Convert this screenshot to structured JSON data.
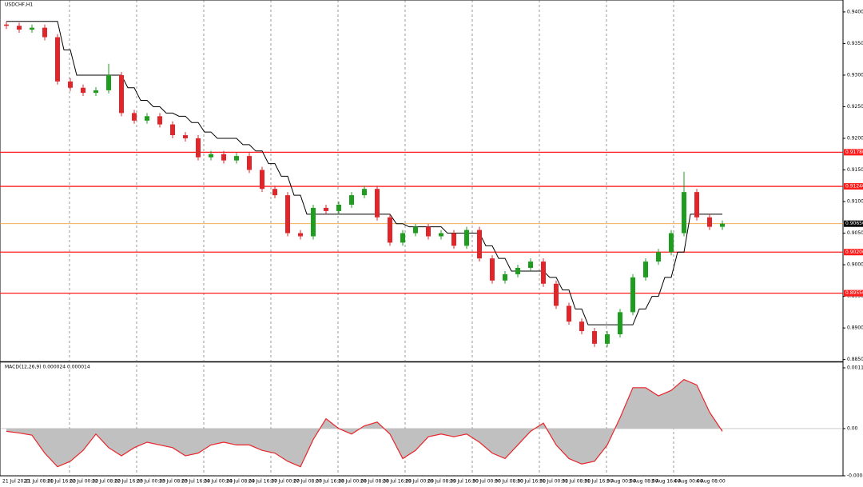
{
  "chart_data": [
    {
      "type": "candlestick",
      "title": "USDCHF,H1",
      "up_color": "#1f9d1f",
      "down_color": "#e0262b",
      "line_color": "#000000",
      "level_color": "#ff1a1a",
      "price_color": "#f0a040",
      "open": [
        0.938,
        0.9378,
        0.9372,
        0.9375,
        0.936,
        0.929,
        0.928,
        0.9272,
        0.9276,
        0.93,
        0.924,
        0.9228,
        0.9235,
        0.9222,
        0.9205,
        0.92,
        0.917,
        0.9175,
        0.9165,
        0.9172,
        0.915,
        0.912,
        0.911,
        0.905,
        0.9045,
        0.909,
        0.9085,
        0.9095,
        0.911,
        0.912,
        0.9075,
        0.9035,
        0.905,
        0.906,
        0.9045,
        0.905,
        0.903,
        0.9055,
        0.901,
        0.8975,
        0.8985,
        0.8995,
        0.9005,
        0.897,
        0.8935,
        0.891,
        0.8895,
        0.8875,
        0.889,
        0.8925,
        0.898,
        0.9005,
        0.902,
        0.905,
        0.9115,
        0.9075,
        0.906
      ],
      "high": [
        0.9385,
        0.9383,
        0.938,
        0.938,
        0.9365,
        0.9295,
        0.9285,
        0.9281,
        0.9318,
        0.9305,
        0.9245,
        0.924,
        0.924,
        0.9227,
        0.921,
        0.9205,
        0.918,
        0.918,
        0.9177,
        0.9177,
        0.9155,
        0.9125,
        0.9115,
        0.9055,
        0.9095,
        0.9095,
        0.91,
        0.9115,
        0.9125,
        0.9125,
        0.908,
        0.9055,
        0.9065,
        0.9065,
        0.9055,
        0.9055,
        0.906,
        0.906,
        0.9015,
        0.899,
        0.9,
        0.901,
        0.901,
        0.8975,
        0.894,
        0.8915,
        0.89,
        0.8895,
        0.893,
        0.8985,
        0.901,
        0.9025,
        0.9055,
        0.9147,
        0.912,
        0.908,
        0.907
      ],
      "low": [
        0.9373,
        0.9367,
        0.9367,
        0.9355,
        0.9285,
        0.9275,
        0.9267,
        0.9267,
        0.9271,
        0.9235,
        0.9223,
        0.9223,
        0.9217,
        0.92,
        0.9195,
        0.9165,
        0.9165,
        0.916,
        0.916,
        0.9145,
        0.9115,
        0.9105,
        0.9045,
        0.904,
        0.904,
        0.908,
        0.908,
        0.909,
        0.9105,
        0.907,
        0.903,
        0.903,
        0.9045,
        0.904,
        0.904,
        0.9025,
        0.9025,
        0.9005,
        0.897,
        0.897,
        0.898,
        0.899,
        0.8965,
        0.893,
        0.8905,
        0.889,
        0.887,
        0.887,
        0.8885,
        0.892,
        0.8975,
        0.9,
        0.9015,
        0.9045,
        0.907,
        0.9055,
        0.9055
      ],
      "close": [
        0.9378,
        0.9372,
        0.9375,
        0.936,
        0.929,
        0.928,
        0.9272,
        0.9276,
        0.93,
        0.924,
        0.9228,
        0.9235,
        0.9222,
        0.9205,
        0.92,
        0.917,
        0.9175,
        0.9165,
        0.9172,
        0.915,
        0.912,
        0.911,
        0.905,
        0.9045,
        0.909,
        0.9085,
        0.9095,
        0.911,
        0.912,
        0.9075,
        0.9035,
        0.905,
        0.906,
        0.9045,
        0.905,
        0.903,
        0.9055,
        0.901,
        0.8975,
        0.8985,
        0.8995,
        0.9005,
        0.897,
        0.8935,
        0.891,
        0.8895,
        0.8875,
        0.889,
        0.8925,
        0.898,
        0.9005,
        0.902,
        0.905,
        0.9115,
        0.9075,
        0.906,
        0.9065
      ],
      "trail": [
        0.9385,
        0.9385,
        0.9385,
        0.9385,
        0.9385,
        0.934,
        0.93,
        0.93,
        0.93,
        0.93,
        0.928,
        0.926,
        0.925,
        0.924,
        0.9235,
        0.9225,
        0.921,
        0.92,
        0.92,
        0.919,
        0.918,
        0.916,
        0.914,
        0.911,
        0.908,
        0.908,
        0.908,
        0.908,
        0.908,
        0.908,
        0.908,
        0.9065,
        0.906,
        0.906,
        0.906,
        0.905,
        0.905,
        0.905,
        0.903,
        0.901,
        0.899,
        0.899,
        0.899,
        0.898,
        0.896,
        0.893,
        0.8905,
        0.8905,
        0.8905,
        0.8905,
        0.893,
        0.895,
        0.898,
        0.902,
        0.908,
        0.908,
        0.908
      ],
      "ylim": [
        0.8847,
        0.941
      ],
      "yticks": [
        {
          "value": 0.885,
          "label": "0.88500"
        },
        {
          "value": 0.89,
          "label": "0.89000"
        },
        {
          "value": 0.895,
          "label": "0.89500"
        },
        {
          "value": 0.9,
          "label": "0.90000"
        },
        {
          "value": 0.905,
          "label": "0.90500"
        },
        {
          "value": 0.91,
          "label": "0.91000"
        },
        {
          "value": 0.915,
          "label": "0.91500"
        },
        {
          "value": 0.92,
          "label": "0.92000"
        },
        {
          "value": 0.925,
          "label": "0.92500"
        },
        {
          "value": 0.93,
          "label": "0.93000"
        },
        {
          "value": 0.935,
          "label": "0.93500"
        },
        {
          "value": 0.94,
          "label": "0.94000"
        }
      ],
      "levels": [
        {
          "value": 0.9178,
          "label": "0.91780"
        },
        {
          "value": 0.9124,
          "label": "0.91240"
        },
        {
          "value": 0.902,
          "label": "0.90200"
        },
        {
          "value": 0.8955,
          "label": "0.89550"
        }
      ],
      "price": {
        "value": 0.9065,
        "label": "0.90650"
      },
      "x_labels": [
        "21 Jul 2020",
        "21 Jul 08:00",
        "21 Jul 16:00",
        "22 Jul 00:00",
        "22 Jul 08:00",
        "22 Jul 16:00",
        "23 Jul 00:00",
        "23 Jul 08:00",
        "23 Jul 16:00",
        "24 Jul 00:00",
        "24 Jul 08:00",
        "24 Jul 16:00",
        "27 Jul 00:00",
        "27 Jul 08:00",
        "27 Jul 16:00",
        "28 Jul 00:00",
        "28 Jul 08:00",
        "28 Jul 16:00",
        "29 Jul 00:00",
        "29 Jul 08:00",
        "29 Jul 16:00",
        "30 Jul 00:00",
        "30 Jul 08:00",
        "30 Jul 16:00",
        "31 Jul 00:00",
        "31 Jul 08:00",
        "31 Jul 16:00",
        "3 Aug 00:00",
        "3 Aug 08:00",
        "3 Aug 16:00",
        "4 Aug 00:00",
        "4 Aug 08:00"
      ]
    },
    {
      "type": "area",
      "title": "MACD(12,26,9) 0.000024 0.000014",
      "color": "#c0c0c0",
      "line_color": "#e8262b",
      "values": [
        -5e-05,
        -8e-05,
        -0.00012,
        -0.00045,
        -0.0007,
        -0.0006,
        -0.0004,
        -0.0001,
        -0.00035,
        -0.0005,
        -0.00035,
        -0.00025,
        -0.0003,
        -0.00035,
        -0.0005,
        -0.00045,
        -0.0003,
        -0.00025,
        -0.0003,
        -0.0003,
        -0.0004,
        -0.00045,
        -0.0006,
        -0.0007,
        -0.0002,
        0.00018,
        0,
        -0.0001,
        5e-05,
        0.00012,
        -0.0001,
        -0.00055,
        -0.0004,
        -0.00015,
        -0.0001,
        -0.00015,
        -0.0001,
        -0.00025,
        -0.00045,
        -0.00055,
        -0.0003,
        -5e-05,
        0.0001,
        -0.0003,
        -0.00055,
        -0.00065,
        -0.0006,
        -0.0003,
        0.0002,
        0.00075,
        0.00075,
        0.0006,
        0.0007,
        0.0009,
        0.0008,
        0.0003,
        -5e-05
      ],
      "ylim": [
        -0.000866,
        0.001114
      ],
      "yticks": [
        -0.000866,
        {
          "value": 0,
          "label": "0.00"
        },
        0.001114
      ]
    }
  ]
}
